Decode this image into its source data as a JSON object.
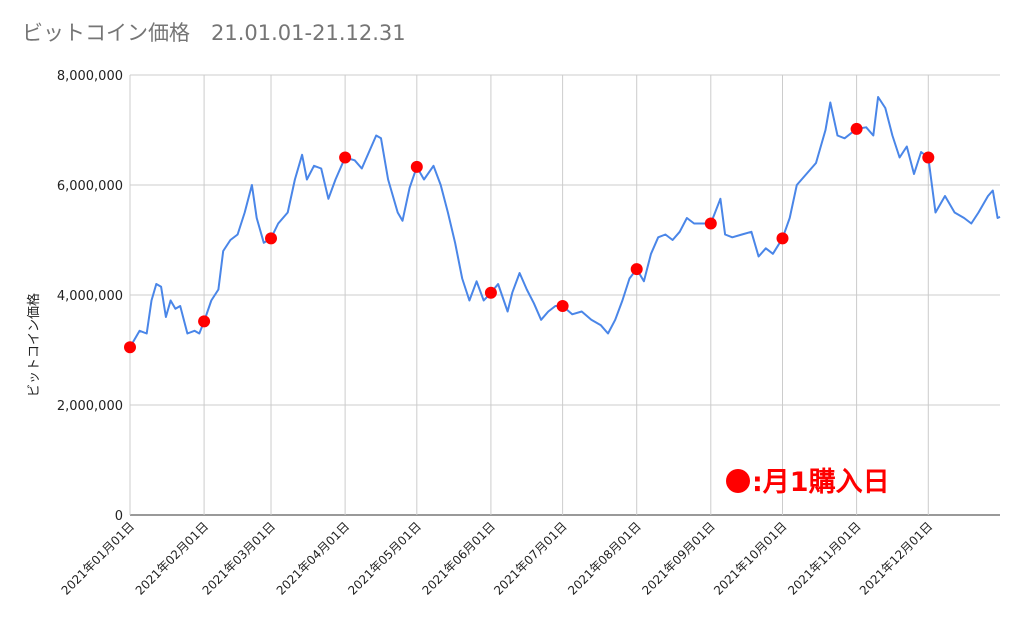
{
  "chart_data": {
    "type": "line",
    "title": "ビットコイン価格　21.01.01-21.12.31",
    "y_label": "ビットコイン価格",
    "xlim": [
      "2021-01-01",
      "2021-12-31"
    ],
    "xticks": [
      {
        "value": "2021-01-01",
        "label": "2021年01月01日"
      },
      {
        "value": "2021-02-01",
        "label": "2021年02月01日"
      },
      {
        "value": "2021-03-01",
        "label": "2021年03月01日"
      },
      {
        "value": "2021-04-01",
        "label": "2021年04月01日"
      },
      {
        "value": "2021-05-01",
        "label": "2021年05月01日"
      },
      {
        "value": "2021-06-01",
        "label": "2021年06月01日"
      },
      {
        "value": "2021-07-01",
        "label": "2021年07月01日"
      },
      {
        "value": "2021-08-01",
        "label": "2021年08月01日"
      },
      {
        "value": "2021-09-01",
        "label": "2021年09月01日"
      },
      {
        "value": "2021-10-01",
        "label": "2021年10月01日"
      },
      {
        "value": "2021-11-01",
        "label": "2021年11月01日"
      },
      {
        "value": "2021-12-01",
        "label": "2021年12月01日"
      }
    ],
    "ylim": [
      0,
      8000000
    ],
    "yticks": [
      0,
      {
        "value": 2000000,
        "label": "2,000,000"
      },
      {
        "value": 4000000,
        "label": "4,000,000"
      },
      {
        "value": 6000000,
        "label": "6,000,000"
      },
      {
        "value": 8000000,
        "label": "8,000,000"
      }
    ],
    "grid": true,
    "series": [
      {
        "mode": "line",
        "color": "#4a86e8",
        "x": [
          "2021-01-01",
          "2021-01-05",
          "2021-01-08",
          "2021-01-10",
          "2021-01-12",
          "2021-01-14",
          "2021-01-16",
          "2021-01-18",
          "2021-01-20",
          "2021-01-22",
          "2021-01-25",
          "2021-01-28",
          "2021-01-30",
          "2021-02-01",
          "2021-02-04",
          "2021-02-07",
          "2021-02-09",
          "2021-02-12",
          "2021-02-15",
          "2021-02-18",
          "2021-02-21",
          "2021-02-23",
          "2021-02-26",
          "2021-03-01",
          "2021-03-04",
          "2021-03-08",
          "2021-03-11",
          "2021-03-14",
          "2021-03-16",
          "2021-03-19",
          "2021-03-22",
          "2021-03-25",
          "2021-03-28",
          "2021-04-01",
          "2021-04-05",
          "2021-04-08",
          "2021-04-11",
          "2021-04-14",
          "2021-04-16",
          "2021-04-19",
          "2021-04-23",
          "2021-04-25",
          "2021-04-28",
          "2021-05-01",
          "2021-05-04",
          "2021-05-08",
          "2021-05-11",
          "2021-05-14",
          "2021-05-17",
          "2021-05-20",
          "2021-05-23",
          "2021-05-26",
          "2021-05-29",
          "2021-06-01",
          "2021-06-04",
          "2021-06-08",
          "2021-06-10",
          "2021-06-13",
          "2021-06-16",
          "2021-06-19",
          "2021-06-22",
          "2021-06-25",
          "2021-06-28",
          "2021-07-01",
          "2021-07-05",
          "2021-07-09",
          "2021-07-13",
          "2021-07-17",
          "2021-07-20",
          "2021-07-23",
          "2021-07-26",
          "2021-07-29",
          "2021-08-01",
          "2021-08-04",
          "2021-08-07",
          "2021-08-10",
          "2021-08-13",
          "2021-08-16",
          "2021-08-19",
          "2021-08-22",
          "2021-08-25",
          "2021-08-28",
          "2021-09-01",
          "2021-09-05",
          "2021-09-07",
          "2021-09-10",
          "2021-09-14",
          "2021-09-18",
          "2021-09-21",
          "2021-09-24",
          "2021-09-27",
          "2021-10-01",
          "2021-10-04",
          "2021-10-07",
          "2021-10-11",
          "2021-10-15",
          "2021-10-19",
          "2021-10-21",
          "2021-10-24",
          "2021-10-27",
          "2021-11-01",
          "2021-11-05",
          "2021-11-08",
          "2021-11-10",
          "2021-11-13",
          "2021-11-16",
          "2021-11-19",
          "2021-11-22",
          "2021-11-25",
          "2021-11-28",
          "2021-12-01",
          "2021-12-04",
          "2021-12-08",
          "2021-12-12",
          "2021-12-16",
          "2021-12-19",
          "2021-12-22",
          "2021-12-26",
          "2021-12-28",
          "2021-12-30",
          "2021-12-31"
        ],
        "values": [
          3050000,
          3350000,
          3300000,
          3900000,
          4200000,
          4150000,
          3600000,
          3900000,
          3750000,
          3800000,
          3300000,
          3350000,
          3300000,
          3520000,
          3900000,
          4100000,
          4800000,
          5000000,
          5100000,
          5500000,
          6000000,
          5400000,
          4950000,
          5030000,
          5300000,
          5500000,
          6100000,
          6550000,
          6100000,
          6350000,
          6300000,
          5750000,
          6100000,
          6500000,
          6450000,
          6300000,
          6600000,
          6900000,
          6850000,
          6100000,
          5500000,
          5350000,
          5950000,
          6330000,
          6100000,
          6350000,
          6000000,
          5500000,
          4950000,
          4300000,
          3900000,
          4250000,
          3900000,
          4040000,
          4200000,
          3700000,
          4050000,
          4400000,
          4100000,
          3850000,
          3550000,
          3700000,
          3800000,
          3800000,
          3650000,
          3700000,
          3550000,
          3450000,
          3300000,
          3550000,
          3900000,
          4300000,
          4470000,
          4250000,
          4750000,
          5050000,
          5100000,
          5000000,
          5150000,
          5400000,
          5300000,
          5300000,
          5300000,
          5750000,
          5100000,
          5050000,
          5100000,
          5150000,
          4700000,
          4850000,
          4750000,
          5030000,
          5400000,
          6000000,
          6200000,
          6400000,
          7000000,
          7500000,
          6900000,
          6850000,
          7020000,
          7050000,
          6900000,
          7600000,
          7400000,
          6900000,
          6500000,
          6700000,
          6200000,
          6600000,
          6500000,
          5500000,
          5800000,
          5500000,
          5400000,
          5300000,
          5500000,
          5800000,
          5900000,
          5400000,
          5420000
        ]
      },
      {
        "mode": "markers",
        "name": ":月1購入日",
        "color": "#ff0000",
        "x": [
          "2021-01-01",
          "2021-02-01",
          "2021-03-01",
          "2021-04-01",
          "2021-05-01",
          "2021-06-01",
          "2021-07-01",
          "2021-08-01",
          "2021-09-01",
          "2021-10-01",
          "2021-11-01",
          "2021-12-01"
        ],
        "values": [
          3050000,
          3520000,
          5030000,
          6500000,
          6330000,
          4040000,
          3800000,
          4470000,
          5300000,
          5030000,
          7020000,
          6500000
        ]
      }
    ]
  }
}
